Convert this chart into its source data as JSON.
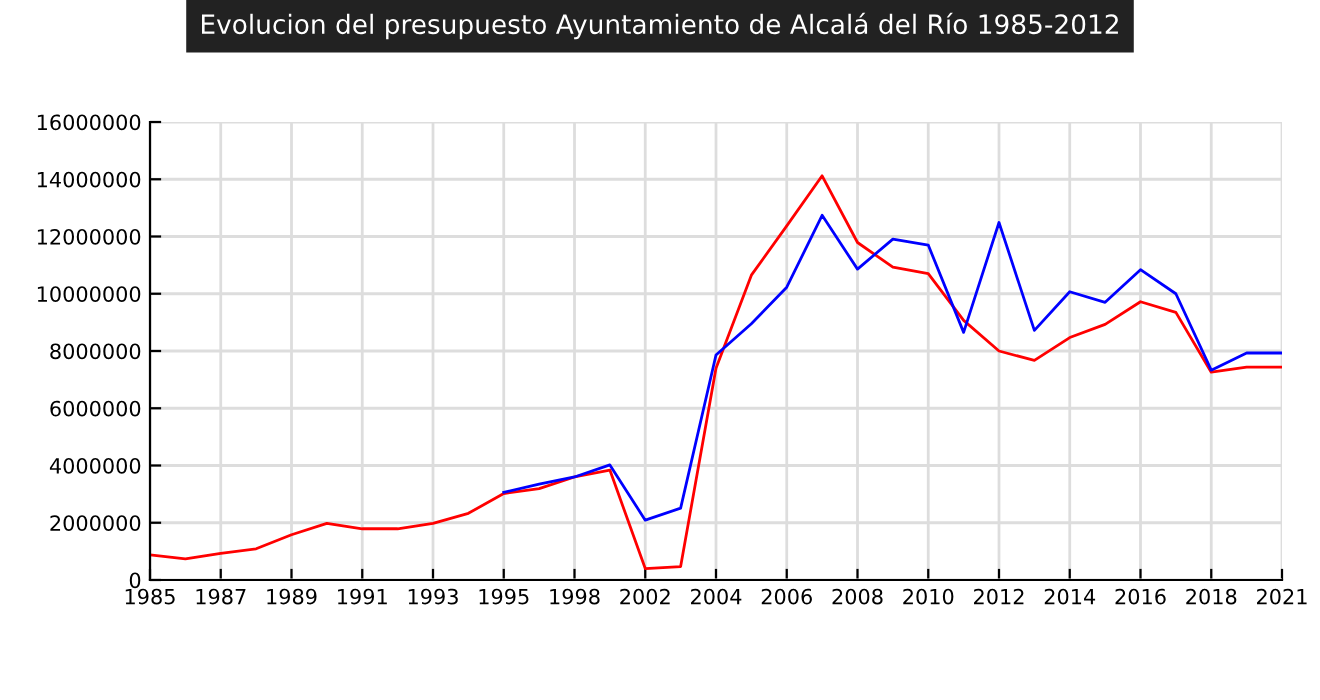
{
  "chart_data": {
    "type": "line",
    "title": "Evolucion del presupuesto Ayuntamiento de Alcalá del Río 1985-2012",
    "categories": [
      "1985",
      null,
      "1987",
      null,
      "1989",
      null,
      "1991",
      null,
      "1993",
      null,
      "1995",
      null,
      "1998",
      null,
      "2002",
      null,
      "2004",
      null,
      "2006",
      null,
      "2008",
      null,
      "2010",
      null,
      "2012",
      null,
      "2014",
      null,
      "2016",
      null,
      "2018",
      null,
      "2021"
    ],
    "series": [
      {
        "color": "#ff0000",
        "values": [
          880000,
          740000,
          930000,
          1090000,
          1580000,
          1980000,
          1790000,
          1790000,
          1980000,
          2330000,
          3020000,
          3190000,
          3600000,
          3840000,
          400000,
          470000,
          7400000,
          10650000,
          12370000,
          14120000,
          11790000,
          10930000,
          10700000,
          9070000,
          8000000,
          7670000,
          8470000,
          8930000,
          9720000,
          9350000,
          7260000,
          7440000,
          7440000
        ]
      },
      {
        "color": "#0000ff",
        "values": [
          null,
          null,
          null,
          null,
          null,
          null,
          null,
          null,
          null,
          null,
          3060000,
          3350000,
          3600000,
          4020000,
          2090000,
          2510000,
          7860000,
          8950000,
          10230000,
          12740000,
          10860000,
          11910000,
          11700000,
          8650000,
          12490000,
          8720000,
          10070000,
          9700000,
          10840000,
          10000000,
          7330000,
          7930000,
          7930000
        ]
      }
    ],
    "ylim": [
      0,
      16000000
    ],
    "yticks": [
      0,
      2000000,
      4000000,
      6000000,
      8000000,
      10000000,
      12000000,
      14000000,
      16000000
    ],
    "grid": true,
    "legend": false,
    "marker": "none",
    "line_style": "solid"
  }
}
